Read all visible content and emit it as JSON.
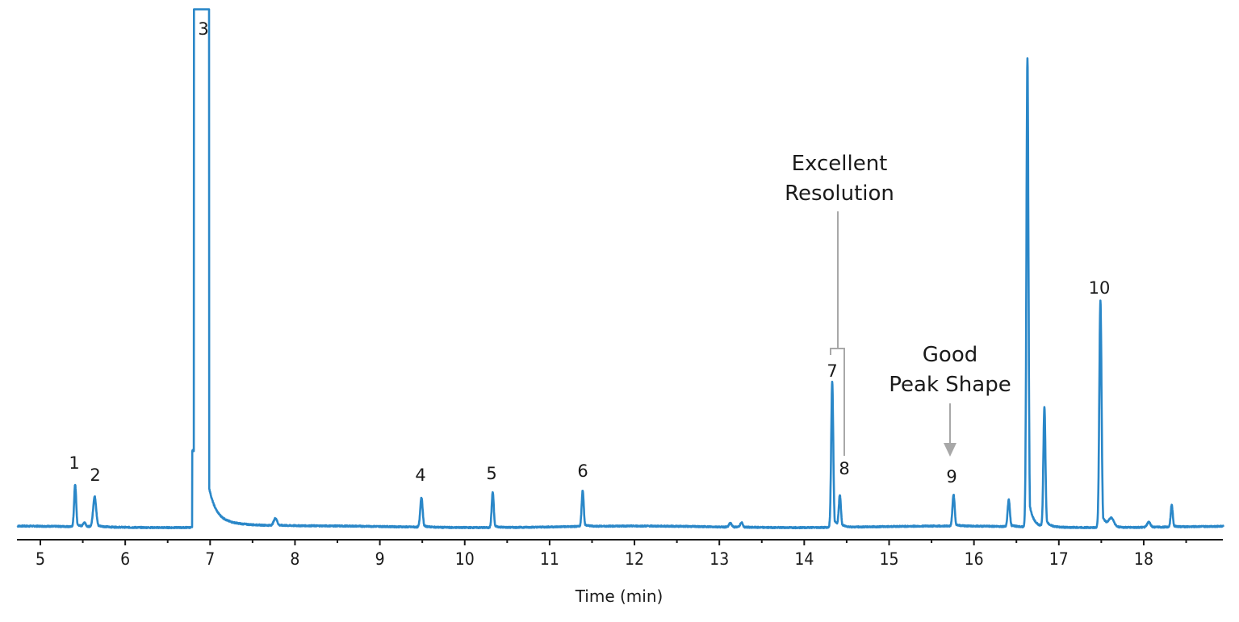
{
  "chart_data": {
    "type": "line",
    "title": "",
    "xlabel": "Time (min)",
    "ylabel": "",
    "xlim": [
      4.73,
      18.94
    ],
    "xticks": [
      5,
      6,
      7,
      8,
      9,
      10,
      11,
      12,
      13,
      14,
      15,
      16,
      17,
      18
    ],
    "minor_xticks": [
      5.5,
      6.5,
      7.5,
      8.5,
      9.5,
      10.5,
      11.5,
      12.5,
      13.5,
      14.5,
      15.5,
      16.5,
      17.5,
      18.5
    ],
    "grid": false,
    "legend": null,
    "series_color": "#2a87c8",
    "baseline_note": "relative response, 0 = baseline, 100 = top of plot area",
    "peaks": [
      {
        "label": "1",
        "rt": 5.41,
        "height": 8.2,
        "width": 0.012
      },
      {
        "label": "",
        "rt": 5.52,
        "height": 0.8,
        "width": 0.015
      },
      {
        "label": "2",
        "rt": 5.64,
        "height": 5.9,
        "width": 0.018
      },
      {
        "label": "3",
        "rt": 6.9,
        "height": 100,
        "width": 0.07,
        "offscale": true
      },
      {
        "label": "",
        "rt": 7.77,
        "height": 1.4,
        "width": 0.02
      },
      {
        "label": "4",
        "rt": 9.49,
        "height": 5.8,
        "width": 0.014
      },
      {
        "label": "5",
        "rt": 10.33,
        "height": 6.9,
        "width": 0.012
      },
      {
        "label": "6",
        "rt": 11.39,
        "height": 7.0,
        "width": 0.012
      },
      {
        "label": "",
        "rt": 13.13,
        "height": 0.8,
        "width": 0.015
      },
      {
        "label": "",
        "rt": 13.26,
        "height": 0.9,
        "width": 0.015
      },
      {
        "label": "7",
        "rt": 14.33,
        "height": 28.4,
        "width": 0.012
      },
      {
        "label": "8",
        "rt": 14.42,
        "height": 6.0,
        "width": 0.012
      },
      {
        "label": "9",
        "rt": 15.76,
        "height": 6.1,
        "width": 0.013
      },
      {
        "label": "",
        "rt": 16.41,
        "height": 5.2,
        "width": 0.013
      },
      {
        "label": "",
        "rt": 16.63,
        "height": 91.5,
        "width": 0.012
      },
      {
        "label": "",
        "rt": 16.83,
        "height": 23.3,
        "width": 0.012
      },
      {
        "label": "10",
        "rt": 17.49,
        "height": 44.4,
        "width": 0.013
      },
      {
        "label": "",
        "rt": 17.62,
        "height": 1.6,
        "width": 0.03
      },
      {
        "label": "",
        "rt": 18.06,
        "height": 1.0,
        "width": 0.02
      },
      {
        "label": "",
        "rt": 18.33,
        "height": 4.3,
        "width": 0.012
      }
    ],
    "annotations": [
      {
        "text": [
          "Excellent",
          "Resolution"
        ],
        "points_to": [
          "7",
          "8"
        ],
        "style": "bracket"
      },
      {
        "text": [
          "Good",
          "Peak Shape"
        ],
        "points_to": [
          "9"
        ],
        "style": "arrow"
      }
    ]
  },
  "labels": {
    "xlabel": "Time (min)",
    "ann1_line1": "Excellent",
    "ann1_line2": "Resolution",
    "ann2_line1": "Good",
    "ann2_line2": "Peak Shape"
  }
}
